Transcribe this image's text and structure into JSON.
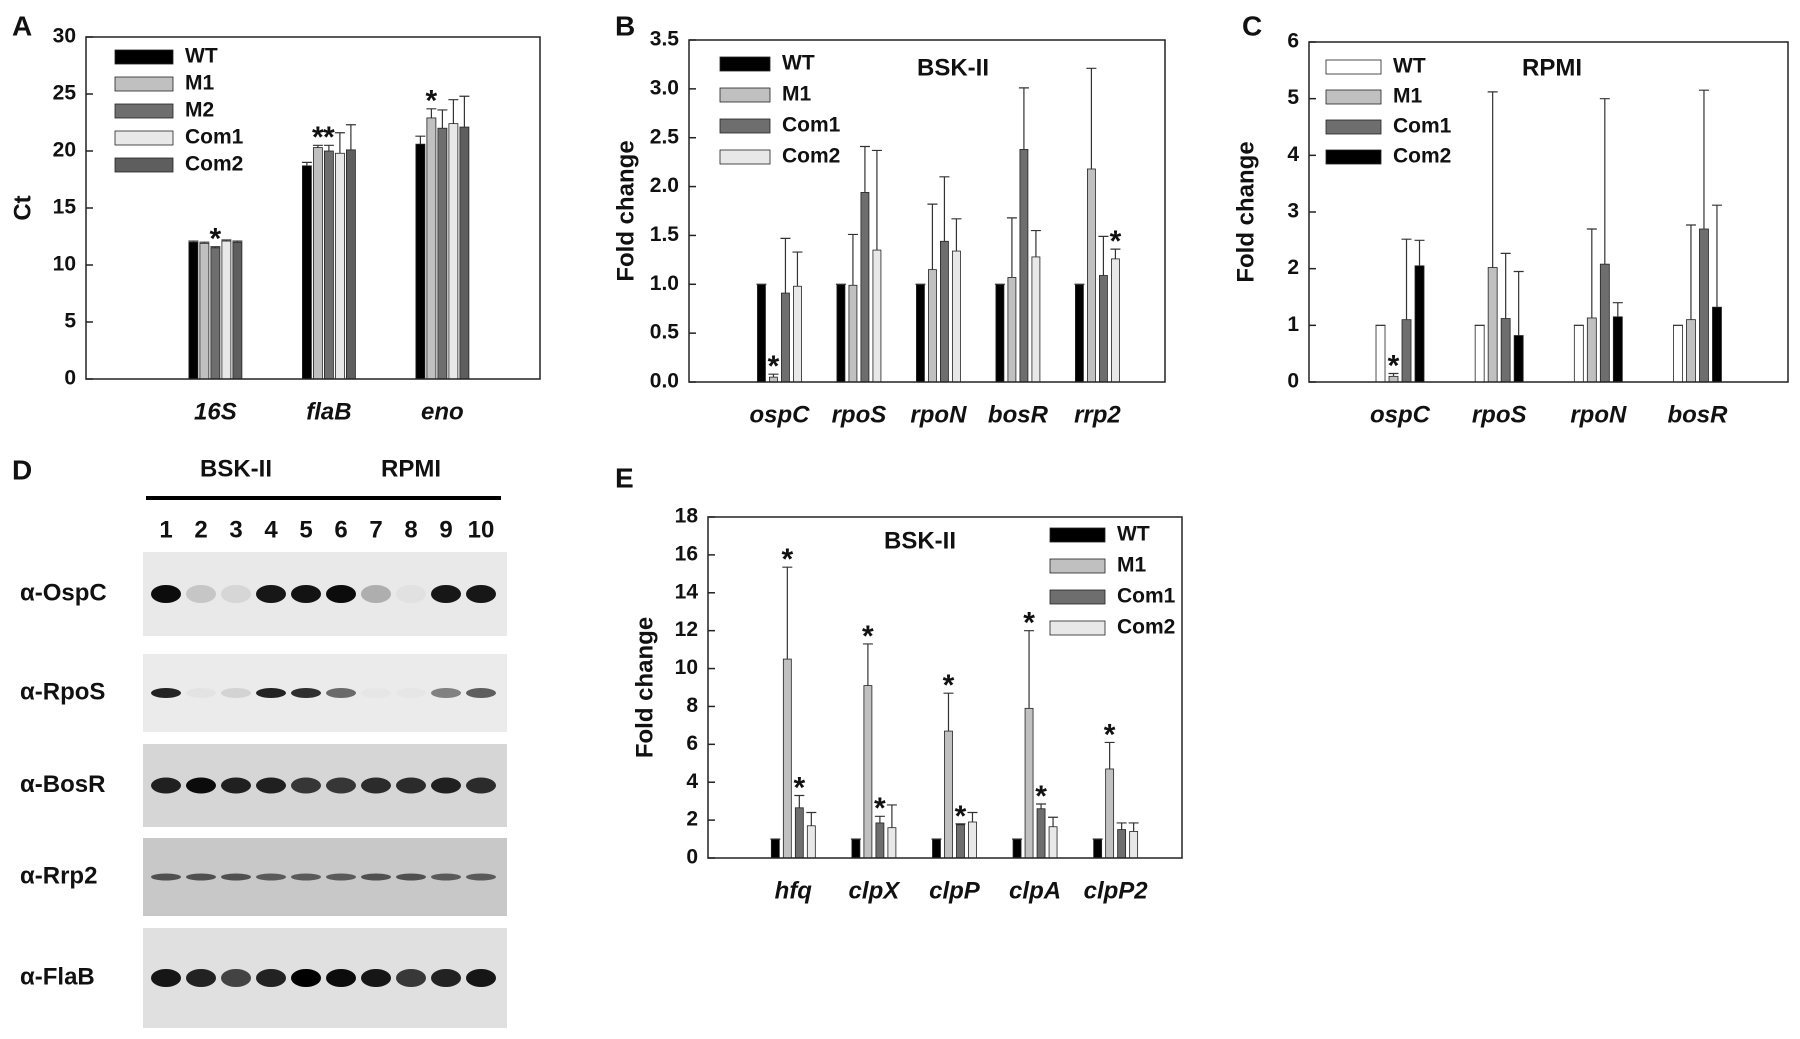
{
  "chart_data": [
    {
      "type": "bar",
      "panel": "A",
      "y_label": "Ct",
      "ylim": [
        0,
        30
      ],
      "yticks": [
        0,
        5,
        10,
        15,
        20,
        25,
        30
      ],
      "categories": [
        "16S",
        "flaB",
        "eno"
      ],
      "series": [
        {
          "name": "WT",
          "color": "#000000",
          "values": [
            12.0,
            18.7,
            20.6
          ],
          "errors": [
            0.1,
            0.3,
            0.7
          ],
          "significance": [
            null,
            null,
            null
          ]
        },
        {
          "name": "M1",
          "color": "#c0c0c0",
          "values": [
            11.9,
            20.3,
            22.9
          ],
          "errors": [
            0.1,
            0.2,
            0.8
          ],
          "significance": [
            null,
            "*",
            "*"
          ]
        },
        {
          "name": "M2",
          "color": "#6e6e6e",
          "values": [
            11.5,
            20.0,
            22.0
          ],
          "errors": [
            0.1,
            0.5,
            1.6
          ],
          "significance": [
            "*",
            "*",
            null
          ]
        },
        {
          "name": "Com1",
          "color": "#e8e8e8",
          "values": [
            12.1,
            19.8,
            22.4
          ],
          "errors": [
            0.1,
            1.8,
            2.1
          ],
          "significance": [
            null,
            null,
            null
          ]
        },
        {
          "name": "Com2",
          "color": "#5e5e5e",
          "values": [
            12.0,
            20.1,
            22.1
          ],
          "errors": [
            0.1,
            2.2,
            2.7
          ],
          "significance": [
            null,
            null,
            null
          ]
        }
      ]
    },
    {
      "type": "bar",
      "panel": "B",
      "title": "BSK-II",
      "y_label": "Fold change",
      "ylim": [
        0,
        3.5
      ],
      "yticks": [
        {
          "value": 0,
          "label": "0.0"
        },
        0.5,
        {
          "value": 1,
          "label": "1.0"
        },
        1.5,
        {
          "value": 2,
          "label": "2.0"
        },
        2.5,
        {
          "value": 3,
          "label": "3.0"
        },
        3.5
      ],
      "categories": [
        "ospC",
        "rpoS",
        "rpoN",
        "bosR",
        "rrp2"
      ],
      "series": [
        {
          "name": "WT",
          "color": "#000000",
          "values": [
            1,
            1,
            1,
            1,
            1
          ],
          "errors": [
            0,
            0,
            0,
            0,
            0
          ],
          "significance": [
            null,
            null,
            null,
            null,
            null
          ]
        },
        {
          "name": "M1",
          "color": "#c0c0c0",
          "values": [
            0.05,
            0.99,
            1.15,
            1.07,
            2.18
          ],
          "errors": [
            0.03,
            0.52,
            0.67,
            0.61,
            1.03
          ],
          "significance": [
            "*",
            null,
            null,
            null,
            null
          ]
        },
        {
          "name": "Com1",
          "color": "#6e6e6e",
          "values": [
            0.91,
            1.94,
            1.44,
            2.38,
            1.09
          ],
          "errors": [
            0.56,
            0.47,
            0.66,
            0.63,
            0.4
          ],
          "significance": [
            null,
            null,
            null,
            null,
            null
          ]
        },
        {
          "name": "Com2",
          "color": "#e8e8e8",
          "values": [
            0.98,
            1.35,
            1.34,
            1.28,
            1.26
          ],
          "errors": [
            0.35,
            1.02,
            0.33,
            0.27,
            0.1
          ],
          "significance": [
            null,
            null,
            null,
            null,
            "*"
          ]
        }
      ]
    },
    {
      "type": "bar",
      "panel": "C",
      "title": "RPMI",
      "y_label": "Fold change",
      "ylim": [
        0,
        6
      ],
      "yticks": [
        0,
        1,
        2,
        3,
        4,
        5,
        6
      ],
      "categories": [
        "ospC",
        "rpoS",
        "rpoN",
        "bosR"
      ],
      "series": [
        {
          "name": "WT",
          "color": "#ffffff",
          "values": [
            1,
            1,
            1,
            1
          ],
          "errors": [
            0,
            0,
            0,
            0
          ],
          "significance": [
            null,
            null,
            null,
            null
          ]
        },
        {
          "name": "M1",
          "color": "#c0c0c0",
          "values": [
            0.1,
            2.02,
            1.13,
            1.1
          ],
          "errors": [
            0.05,
            3.1,
            1.57,
            1.67
          ],
          "significance": [
            "*",
            null,
            null,
            null
          ]
        },
        {
          "name": "Com1",
          "color": "#6e6e6e",
          "values": [
            1.1,
            1.12,
            2.08,
            2.7
          ],
          "errors": [
            1.42,
            1.15,
            2.92,
            2.45
          ],
          "significance": [
            null,
            null,
            null,
            null
          ]
        },
        {
          "name": "Com2",
          "color": "#000000",
          "values": [
            2.05,
            0.82,
            1.15,
            1.32
          ],
          "errors": [
            0.45,
            1.13,
            0.25,
            1.8
          ],
          "significance": [
            null,
            null,
            null,
            null
          ]
        }
      ]
    },
    {
      "type": "bar",
      "panel": "E",
      "title": "BSK-II",
      "y_label": "Fold change",
      "ylim": [
        0,
        18
      ],
      "yticks": [
        0,
        2,
        4,
        6,
        8,
        10,
        12,
        14,
        16,
        18
      ],
      "categories": [
        "hfq",
        "clpX",
        "clpP",
        "clpA",
        "clpP2"
      ],
      "series": [
        {
          "name": "WT",
          "color": "#000000",
          "values": [
            1,
            1,
            1,
            1,
            1
          ],
          "errors": [
            0,
            0,
            0,
            0,
            0
          ],
          "significance": [
            null,
            null,
            null,
            null,
            null
          ]
        },
        {
          "name": "M1",
          "color": "#c0c0c0",
          "values": [
            10.5,
            9.1,
            6.7,
            7.9,
            4.7
          ],
          "errors": [
            4.85,
            2.2,
            2.0,
            4.1,
            1.4
          ],
          "significance": [
            "*",
            "*",
            "*",
            "*",
            "*"
          ]
        },
        {
          "name": "Com1",
          "color": "#6e6e6e",
          "values": [
            2.65,
            1.85,
            1.75,
            2.6,
            1.5
          ],
          "errors": [
            0.65,
            0.35,
            0.05,
            0.25,
            0.35
          ],
          "significance": [
            "*",
            "*",
            "*",
            "*",
            null
          ]
        },
        {
          "name": "Com2",
          "color": "#e8e8e8",
          "values": [
            1.7,
            1.6,
            1.9,
            1.65,
            1.4
          ],
          "errors": [
            0.7,
            1.2,
            0.5,
            0.5,
            0.45
          ],
          "significance": [
            null,
            null,
            null,
            null,
            null
          ]
        }
      ]
    }
  ],
  "blot": {
    "panel": "D",
    "groups": [
      "BSK-II",
      "RPMI"
    ],
    "lanes": [
      "1",
      "2",
      "3",
      "4",
      "5",
      "6",
      "7",
      "8",
      "9",
      "10"
    ],
    "antibodies": [
      "α-OspC",
      "α-RpoS",
      "α-BosR",
      "α-Rrp2",
      "α-FlaB"
    ]
  }
}
